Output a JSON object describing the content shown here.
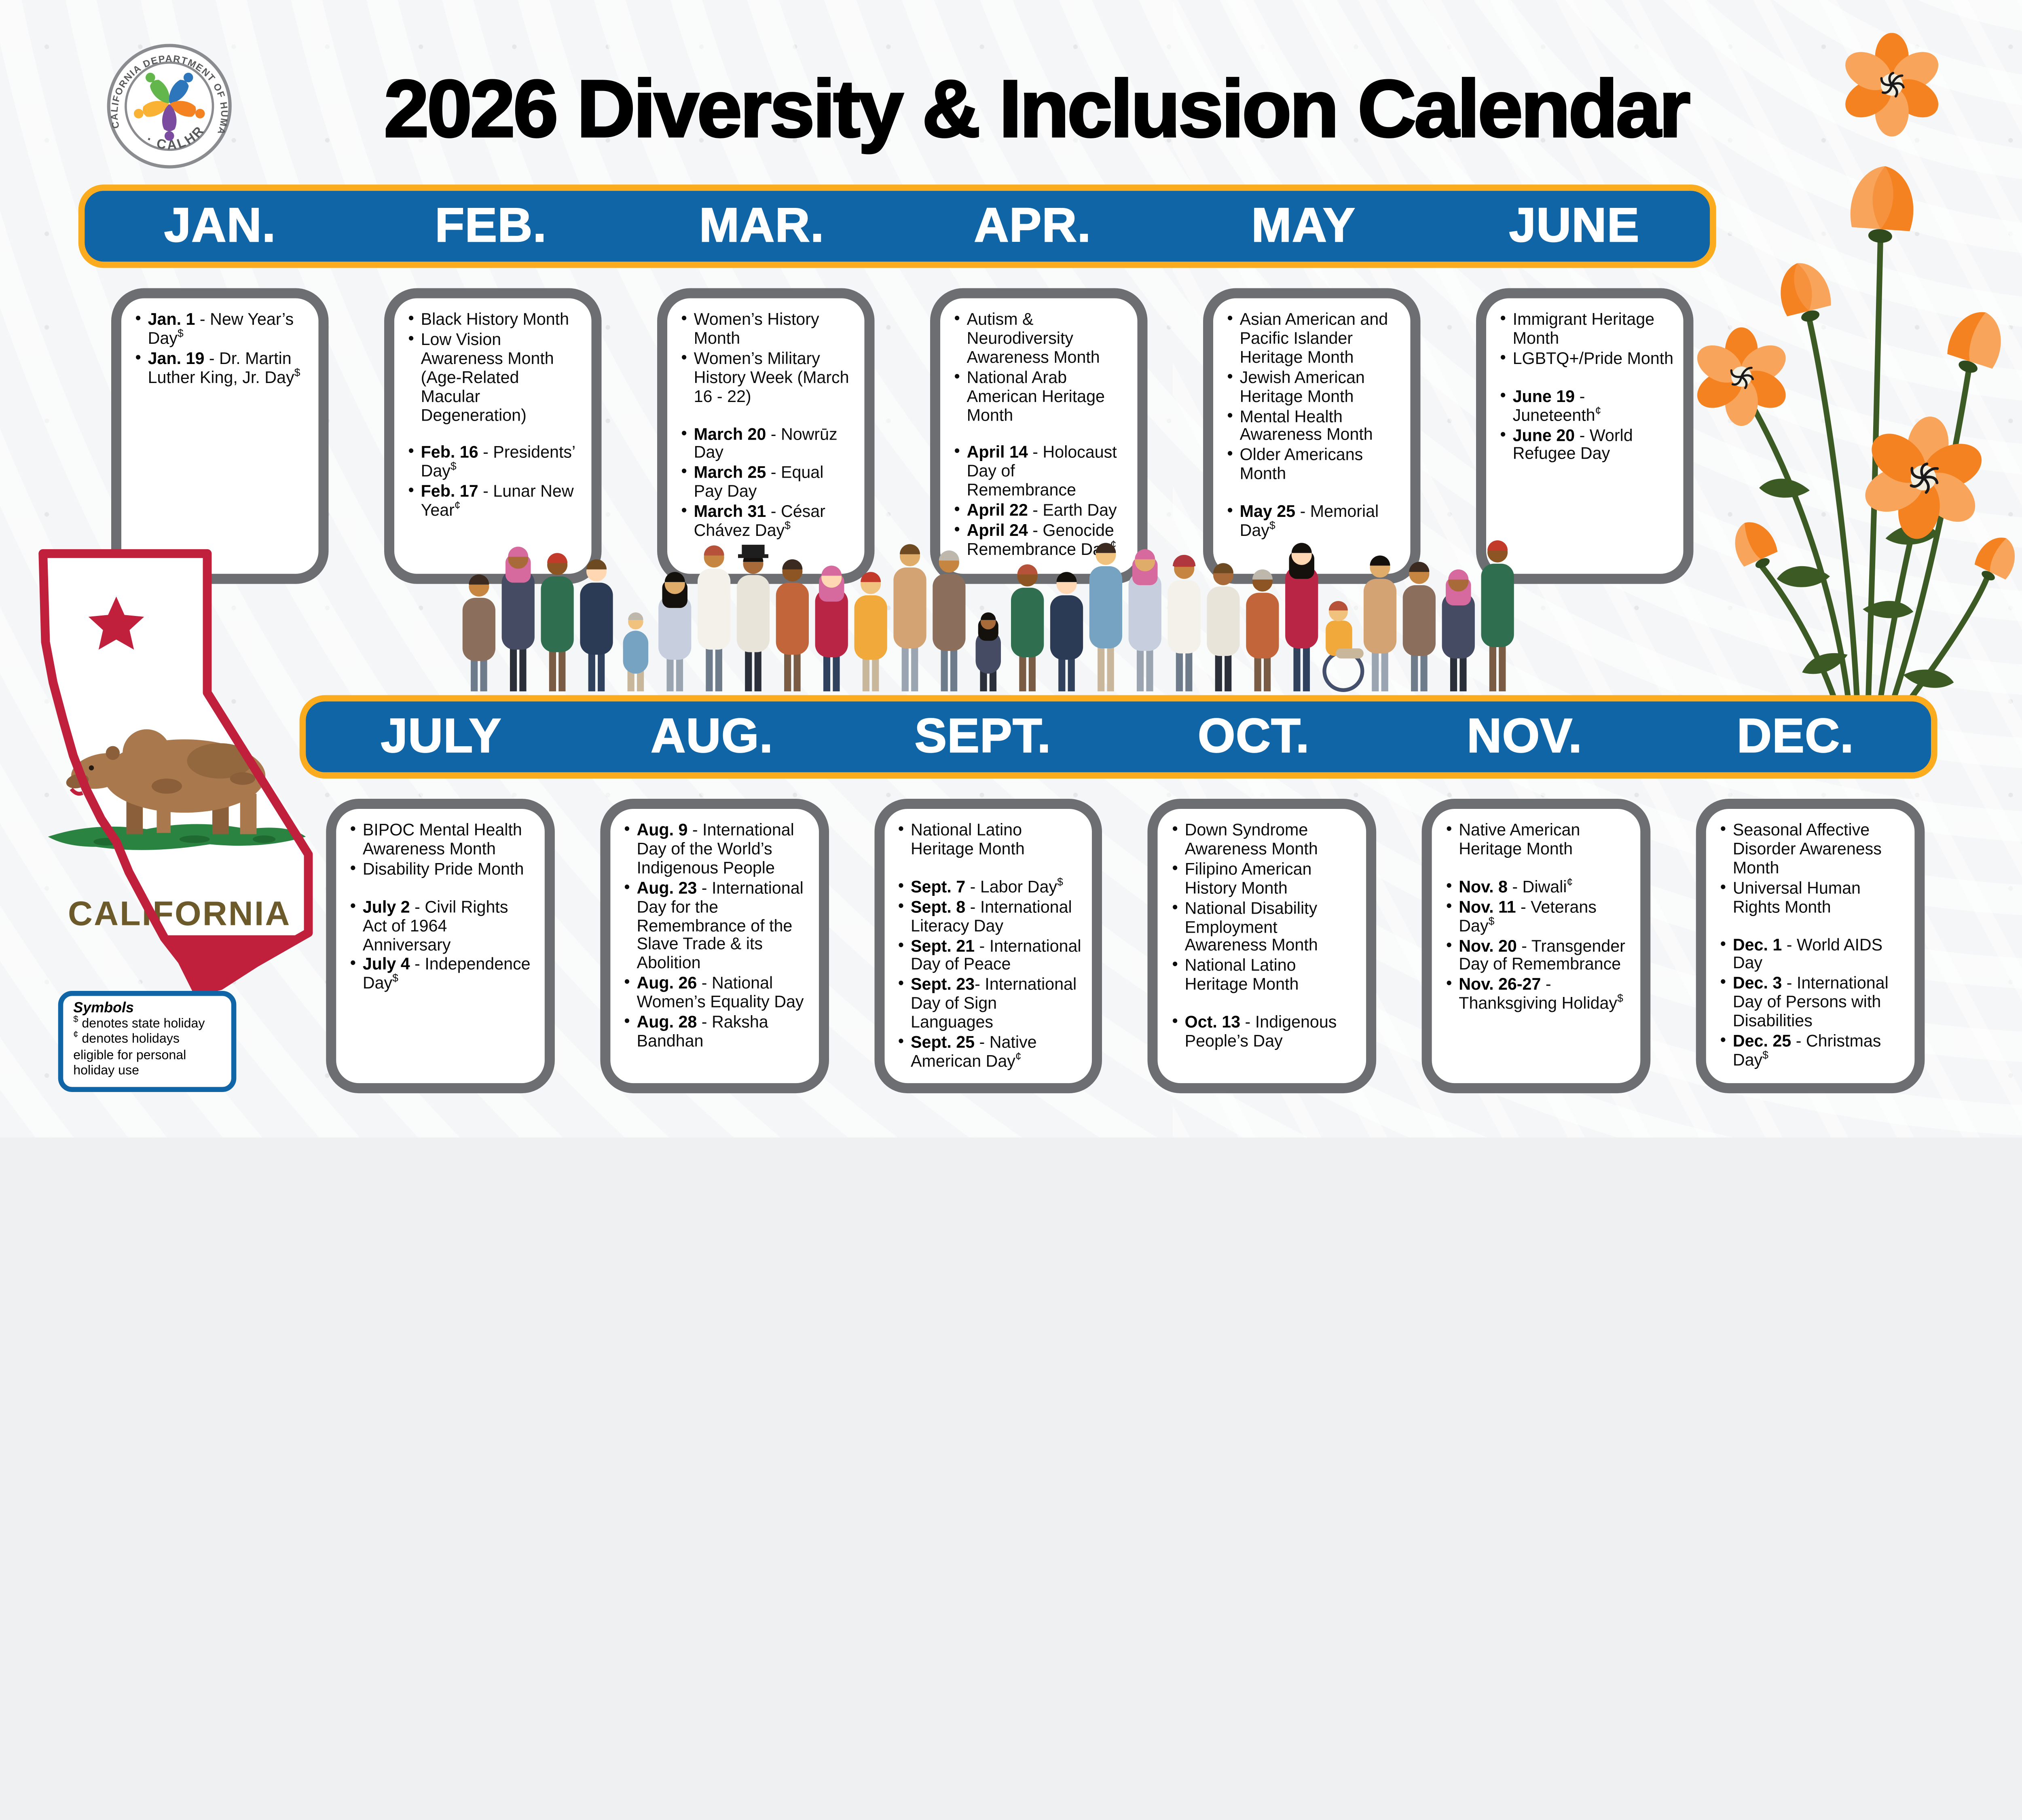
{
  "header": {
    "title": "2026 Diversity & Inclusion Calendar",
    "logo": {
      "ring_text": "CALIFORNIA DEPARTMENT OF HUMAN RESOURCES",
      "calhr": "· CALHR ·"
    }
  },
  "california_label": "CALIFORNIA",
  "symbols": {
    "title": "Symbols",
    "line1_symbol": "$",
    "line1_text": " denotes state holiday",
    "line2_symbol": "¢",
    "line2_text": " denotes holidays eligible for personal holiday use"
  },
  "icons": {
    "logo": "calhr-department-seal",
    "poppy": "california-poppy-flower",
    "california": "california-state-flag-bear",
    "crowd": "diverse-people-group"
  },
  "colors": {
    "bar_blue": "#1065A7",
    "bar_yellow": "#FBAC1E",
    "card_border_gray": "#6d6e71",
    "flag_red": "#C0203C",
    "poppy_orange": "#F58220",
    "poppy_orange_light": "#F9A45B",
    "grass_green": "#2A8340",
    "text_black": "#0c0c0c"
  },
  "months": [
    {
      "id": "jan",
      "label": "JAN.",
      "items": [
        {
          "b": "Jan. 1",
          "t": " - New Year’s Day",
          "s": "$"
        },
        {
          "b": "Jan. 19",
          "t": " - Dr. Martin Luther King, Jr. Day",
          "s": "$"
        }
      ]
    },
    {
      "id": "feb",
      "label": "FEB.",
      "items": [
        {
          "t": "Black History Month"
        },
        {
          "t": "Low Vision Awareness Month (Age-Related Macular Degeneration)"
        },
        {
          "b": "Feb. 16",
          "t": " - Presidents’ Day",
          "s": "$",
          "gap": true
        },
        {
          "b": "Feb. 17",
          "t": " - Lunar New Year",
          "s": "¢"
        }
      ]
    },
    {
      "id": "mar",
      "label": "MAR.",
      "items": [
        {
          "t": "Women’s History Month"
        },
        {
          "t": "Women’s Military History Week (March 16 - 22)"
        },
        {
          "b": "March 20",
          "t": " - Nowrūz Day",
          "gap": true
        },
        {
          "b": "March 25",
          "t": " - Equal Pay Day"
        },
        {
          "b": "March 31",
          "t": " - César Chávez Day",
          "s": "$"
        }
      ]
    },
    {
      "id": "apr",
      "label": "APR.",
      "items": [
        {
          "t": "Autism & Neurodiversity Awareness Month"
        },
        {
          "t": "National Arab American Heritage Month"
        },
        {
          "b": "April 14",
          "t": " - Holocaust Day of Remembrance",
          "gap": true
        },
        {
          "b": "April 22",
          "t": " - Earth Day"
        },
        {
          "b": "April 24",
          "t": " - Genocide Remembrance Day",
          "s": "¢"
        }
      ]
    },
    {
      "id": "may",
      "label": "MAY",
      "items": [
        {
          "t": "Asian American and Pacific Islander Heritage Month"
        },
        {
          "t": "Jewish American Heritage Month"
        },
        {
          "t": "Mental Health Awareness Month"
        },
        {
          "t": "Older Americans Month"
        },
        {
          "b": "May 25",
          "t": " - Memorial Day",
          "s": "$",
          "gap": true
        }
      ]
    },
    {
      "id": "june",
      "label": "JUNE",
      "items": [
        {
          "t": "Immigrant Heritage Month"
        },
        {
          "t": "LGBTQ+/Pride Month"
        },
        {
          "b": "June 19",
          "t": " - Juneteenth",
          "s": "¢",
          "gap": true
        },
        {
          "b": "June 20",
          "t": " - World Refugee Day"
        }
      ]
    },
    {
      "id": "july",
      "label": "JULY",
      "items": [
        {
          "t": "BIPOC Mental Health Awareness Month"
        },
        {
          "t": "Disability Pride Month"
        },
        {
          "b": "July 2",
          "t": " - Civil Rights Act of 1964 Anniversary",
          "gap": true
        },
        {
          "b": "July 4",
          "t": " - Independence Day",
          "s": "$"
        }
      ]
    },
    {
      "id": "aug",
      "label": "AUG.",
      "items": [
        {
          "b": "Aug. 9",
          "t": " - International Day of the World’s Indigenous People"
        },
        {
          "b": "Aug. 23",
          "t": " - International Day for the Remembrance of the Slave Trade & its Abolition"
        },
        {
          "b": "Aug. 26",
          "t": " - National Women’s Equality Day"
        },
        {
          "b": "Aug. 28",
          "t": " - Raksha Bandhan"
        }
      ]
    },
    {
      "id": "sept",
      "label": "SEPT.",
      "items": [
        {
          "t": "National Latino Heritage Month"
        },
        {
          "b": "Sept. 7",
          "t": " - Labor Day",
          "s": "$",
          "gap": true
        },
        {
          "b": "Sept. 8",
          "t": " - International Literacy Day"
        },
        {
          "b": "Sept. 21",
          "t": " - International Day of Peace"
        },
        {
          "b": "Sept. 23",
          "t": "- International Day of Sign Languages"
        },
        {
          "b": "Sept. 25",
          "t": " - Native American Day",
          "s": "¢"
        }
      ]
    },
    {
      "id": "oct",
      "label": "OCT.",
      "items": [
        {
          "t": "Down Syndrome Awareness Month"
        },
        {
          "t": "Filipino American History Month"
        },
        {
          "t": "National Disability Employment Awareness Month"
        },
        {
          "t": "National Latino Heritage Month"
        },
        {
          "b": "Oct. 13",
          "t": " - Indigenous People’s Day",
          "gap": true
        }
      ]
    },
    {
      "id": "nov",
      "label": "NOV.",
      "items": [
        {
          "t": "Native American Heritage Month"
        },
        {
          "b": "Nov. 8",
          "t": " - Diwali",
          "s": "¢",
          "gap": true
        },
        {
          "b": "Nov. 11",
          "t": " - Veterans Day",
          "s": "$"
        },
        {
          "b": "Nov. 20",
          "t": " - Transgender Day of Remembrance"
        },
        {
          "b": "Nov. 26-27",
          "t": " - Thanksgiving Holiday",
          "s": "$"
        }
      ]
    },
    {
      "id": "dec",
      "label": "DEC.",
      "items": [
        {
          "t": "Seasonal Affective Disorder Awareness Month"
        },
        {
          "t": "Universal Human Rights Month"
        },
        {
          "b": "Dec. 1",
          "t": " - World AIDS Day",
          "gap": true
        },
        {
          "b": "Dec. 3",
          "t": " - International Day of Persons with Disabilities"
        },
        {
          "b": "Dec. 25",
          "t": " - Christmas Day",
          "s": "$"
        }
      ]
    }
  ]
}
